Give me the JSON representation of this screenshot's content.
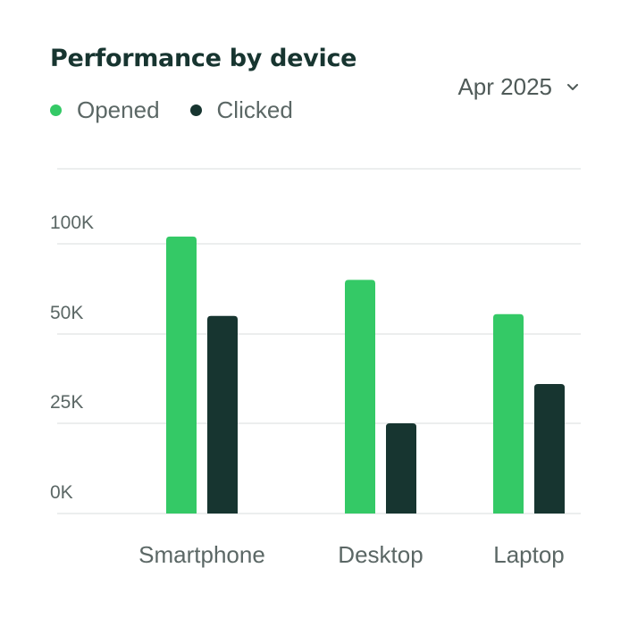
{
  "card": {
    "title": "Performance by device",
    "period_selector": {
      "value": "Apr 2025",
      "icon": "chevron-down-icon"
    }
  },
  "chart_data": {
    "type": "bar",
    "title": "Performance by device",
    "categories": [
      "Smartphone",
      "Desktop",
      "Laptop"
    ],
    "series": [
      {
        "name": "Opened",
        "color": "#34C966",
        "values": [
          104000,
          80000,
          61000
        ]
      },
      {
        "name": "Clicked",
        "color": "#173530",
        "values": [
          60000,
          25000,
          36000
        ]
      }
    ],
    "y_ticks": [
      {
        "value": 0,
        "label": "0K"
      },
      {
        "value": 25000,
        "label": "25K"
      },
      {
        "value": 50000,
        "label": "50K"
      },
      {
        "value": 100000,
        "label": "100K"
      }
    ],
    "ylim": [
      0,
      100000
    ],
    "grid": true,
    "legend_position": "top-left"
  }
}
